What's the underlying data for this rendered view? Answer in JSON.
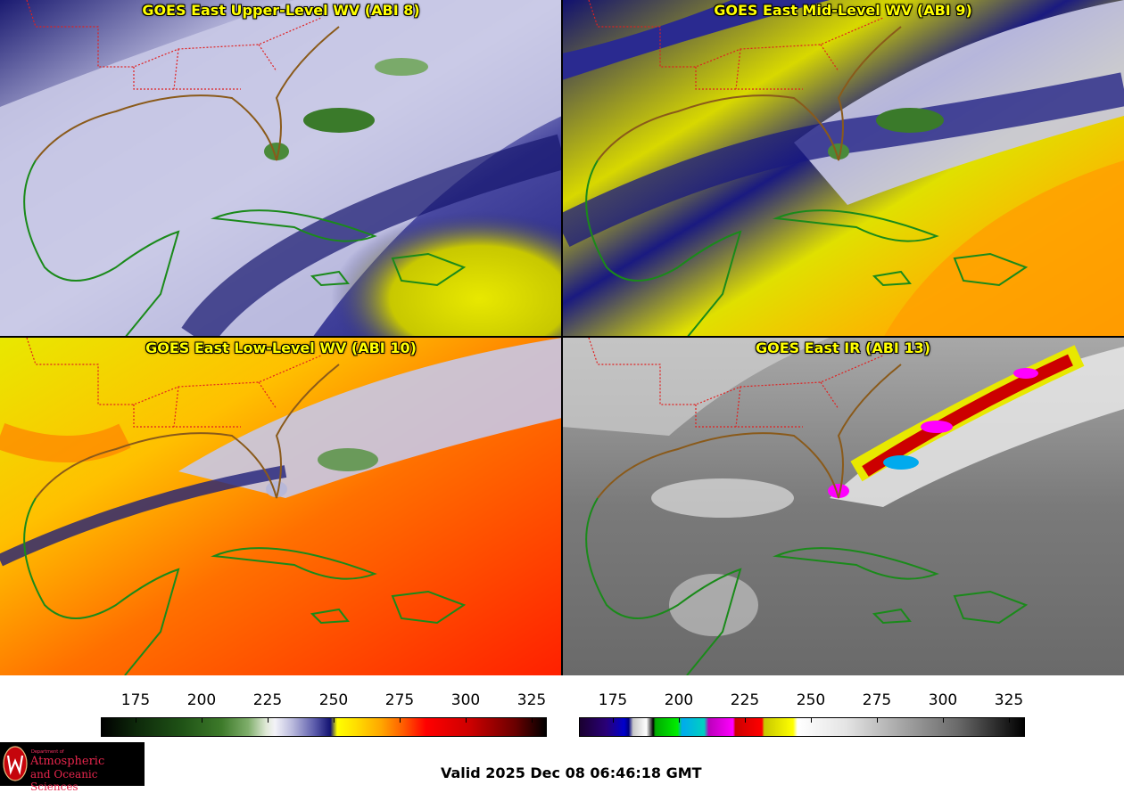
{
  "panels": [
    {
      "title": "GOES East Upper-Level WV (ABI 8)",
      "colormap": "wv"
    },
    {
      "title": "GOES East Mid-Level WV (ABI 9)",
      "colormap": "wv"
    },
    {
      "title": "GOES East Low-Level WV (ABI 10)",
      "colormap": "wv"
    },
    {
      "title": "GOES East IR (ABI 13)",
      "colormap": "ir"
    }
  ],
  "colorbar_wv": {
    "ticks": [
      "175",
      "200",
      "225",
      "250",
      "275",
      "300",
      "325"
    ]
  },
  "colorbar_ir": {
    "ticks": [
      "175",
      "200",
      "225",
      "250",
      "275",
      "300",
      "325"
    ]
  },
  "footer": {
    "valid": "Valid 2025 Dec 08 06:46:18 GMT"
  },
  "logo": {
    "alt_text": "University of Wisconsin Department of Atmospheric and Oceanic Sciences",
    "dept": "Department of",
    "name_line1": "Atmospheric",
    "name_line2": "and Oceanic Sciences"
  },
  "colors": {
    "title_text": "#ffff00",
    "state_borders": "#e02020",
    "coastlines": "#1a8a1a",
    "coast_us": "#8a5a1a",
    "logo_text": "#e8264d"
  }
}
